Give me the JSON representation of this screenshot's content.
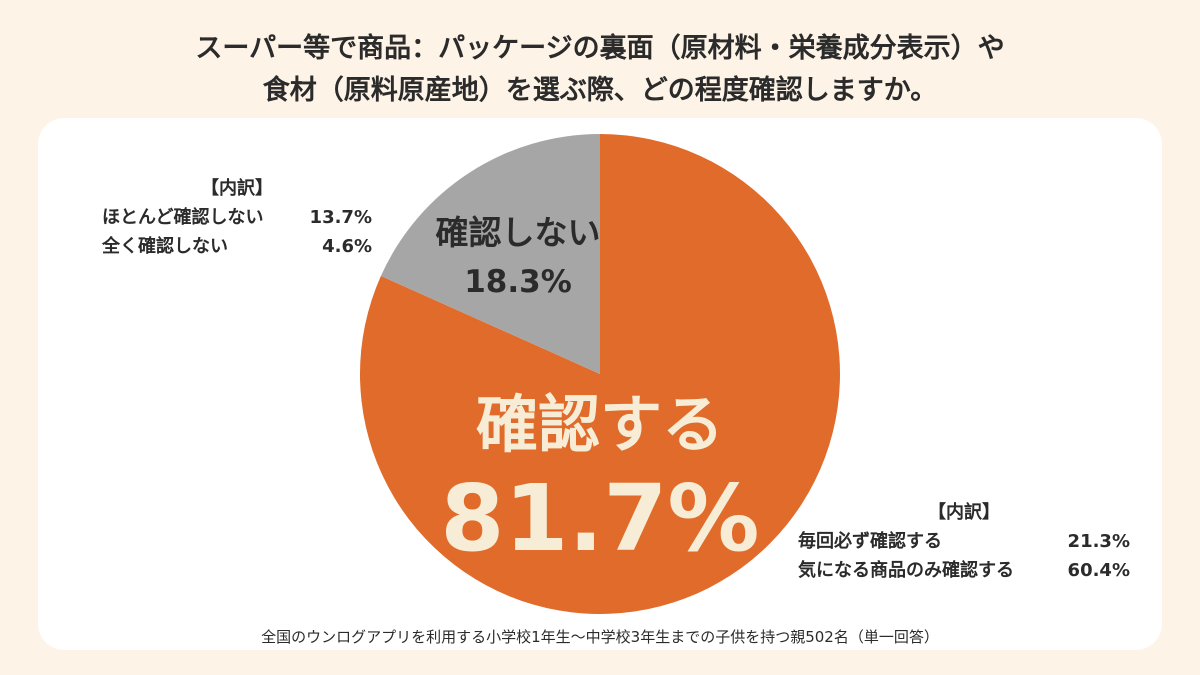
{
  "title": {
    "line1": "スーパー等で商品：パッケージの裏面（原材料・栄養成分表示）や",
    "line2": "食材（原料原産地）を選ぶ際、どの程度確認しますか。"
  },
  "chart_data": {
    "type": "pie",
    "start_angle_deg": 0,
    "direction": "clockwise",
    "slices": [
      {
        "label": "確認する",
        "value": 81.7,
        "value_label": "81.7%",
        "color": "#e06b2a",
        "label_color": "#f7edd6",
        "breakdown": [
          {
            "label": "毎回必ず確認する",
            "value": 21.3,
            "value_label": "21.3%"
          },
          {
            "label": "気になる商品のみ確認する",
            "value": 60.4,
            "value_label": "60.4%"
          }
        ]
      },
      {
        "label": "確認しない",
        "value": 18.3,
        "value_label": "18.3%",
        "color": "#a6a6a6",
        "label_color": "#2b2b2b",
        "breakdown": [
          {
            "label": "ほとんど確認しない",
            "value": 13.7,
            "value_label": "13.7%"
          },
          {
            "label": "全く確認しない",
            "value": 4.6,
            "value_label": "4.6%"
          }
        ]
      }
    ],
    "breakdown_header": "【内訳】"
  },
  "footnote": "全国のウンログアプリを利用する小学校1年生〜中学校3年生までの子供を持つ親502名（単一回答）"
}
